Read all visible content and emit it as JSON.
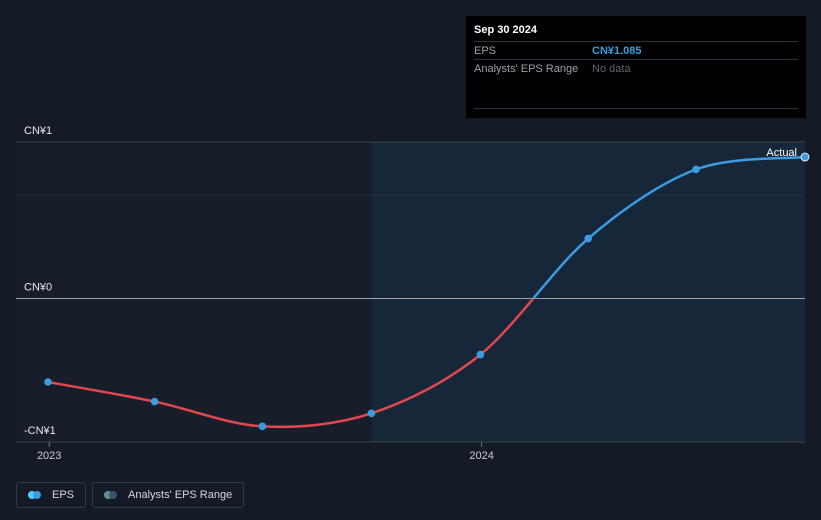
{
  "tooltip": {
    "date": "Sep 30 2024",
    "rows": [
      {
        "label": "EPS",
        "value": "CN¥1.085"
      },
      {
        "label": "Analysts' EPS Range",
        "value": "No data"
      }
    ]
  },
  "legend": {
    "items": [
      {
        "label": "EPS",
        "color_a": "#4fd1ff",
        "color_b": "#3b9ce2"
      },
      {
        "label": "Analysts' EPS Range",
        "color_a": "#5f8f9a",
        "color_b": "#37566a"
      }
    ]
  },
  "colors": {
    "positive": "#3b9ce2",
    "negative": "#e0484d",
    "forecast_band": "#16273a"
  },
  "chart_data": {
    "type": "line",
    "y_tick_labels": [
      "CN¥1",
      "CN¥0",
      "-CN¥1"
    ],
    "x_tick_labels": [
      "2023",
      "2024"
    ],
    "ylim": [
      -1.1,
      1.2
    ],
    "end_label": "Actual",
    "series": [
      {
        "x": [
          "2022-12-31",
          "2023-03-31",
          "2023-06-30",
          "2023-09-30",
          "2023-12-31",
          "2024-03-31",
          "2024-06-30",
          "2024-09-30"
        ],
        "values": [
          -0.64,
          -0.79,
          -0.98,
          -0.88,
          -0.43,
          0.46,
          0.99,
          1.085
        ]
      }
    ]
  }
}
